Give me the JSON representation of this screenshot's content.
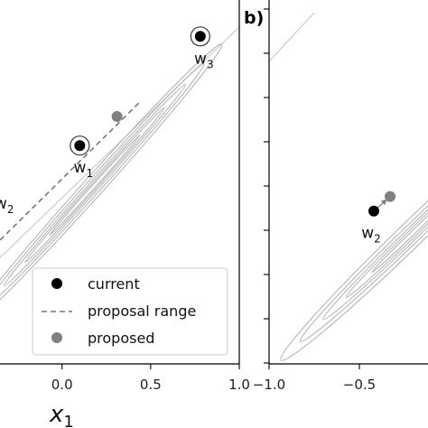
{
  "chart_data": [
    {
      "panel": "a",
      "type": "scatter",
      "xlabel_main": "x",
      "xlabel_sub": "1",
      "xlim": [
        -0.35,
        1.0
      ],
      "x_ticks": [
        {
          "value": 0.0,
          "label": "0.0"
        },
        {
          "value": 0.5,
          "label": "0.5"
        },
        {
          "value": 1.0,
          "label": "1.0"
        }
      ],
      "points": [
        {
          "name": "w",
          "sub": "1",
          "x": 0.1,
          "y": 0.6,
          "state": "current",
          "ringed": true
        },
        {
          "name": "w",
          "sub": "3",
          "x": 0.78,
          "y": 0.9,
          "state": "current",
          "ringed": true
        },
        {
          "name": "",
          "sub": "",
          "x": 0.31,
          "y": 0.68,
          "state": "proposed",
          "ringed": false
        }
      ],
      "partial_label": {
        "name": "w",
        "sub": "2"
      },
      "proposal_range": {
        "x": [
          -0.35,
          0.44
        ],
        "y": [
          0.34,
          0.72
        ]
      },
      "legend": {
        "placement": "lower-right",
        "entries": [
          {
            "label": "current",
            "marker": "filled-dot",
            "color": "#000000"
          },
          {
            "label": "proposal range",
            "marker": "dashed-line",
            "color": "#777777"
          },
          {
            "label": "proposed",
            "marker": "filled-dot",
            "color": "#808080"
          }
        ]
      }
    },
    {
      "panel": "b",
      "type": "scatter",
      "tag": "b)",
      "xlim": [
        -1.0,
        -0.12
      ],
      "x_ticks": [
        {
          "value": -1.0,
          "label": "−1.0"
        },
        {
          "value": -0.5,
          "label": "−0.5"
        }
      ],
      "points": [
        {
          "name": "w",
          "sub": "2",
          "x": -0.42,
          "y": 0.42,
          "state": "current",
          "ringed": false
        },
        {
          "name": "",
          "sub": "",
          "x": -0.33,
          "y": 0.46,
          "state": "proposed",
          "ringed": false
        }
      ]
    }
  ],
  "colors": {
    "current": "#000000",
    "proposed": "#808080",
    "proposal_line": "#777777",
    "contour": "#b5b5b5",
    "diagonal": "#c4c4c4",
    "axis": "#000000"
  }
}
